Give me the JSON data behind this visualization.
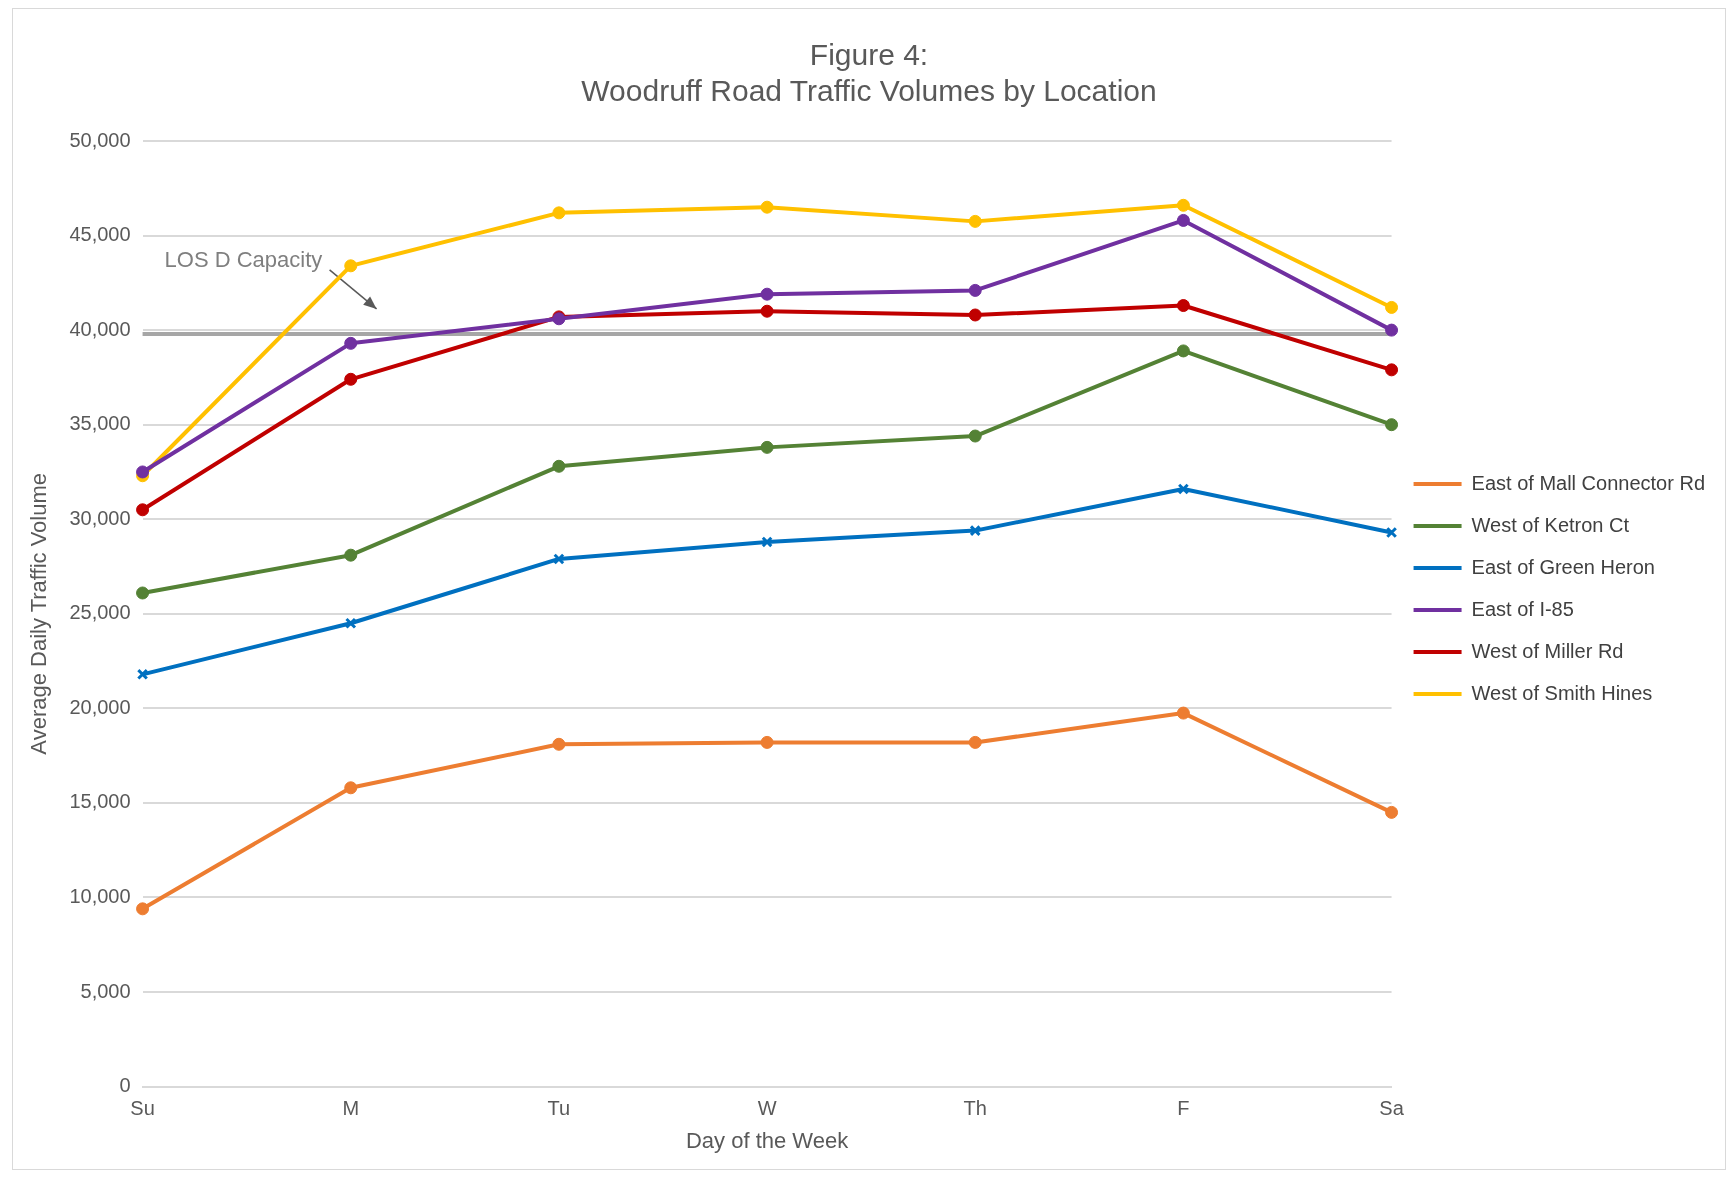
{
  "chart_data": {
    "type": "line",
    "title": "Figure 4:\nWoodruff Road Traffic Volumes by Location",
    "xlabel": "Day of the Week",
    "ylabel": "Average Daily Traffic Volume",
    "categories": [
      "Su",
      "M",
      "Tu",
      "W",
      "Th",
      "F",
      "Sa"
    ],
    "series": [
      {
        "name": "East of Mall Connector Rd",
        "color": "#ed7d31",
        "values": [
          9400,
          15800,
          18100,
          18200,
          18200,
          19750,
          14500
        ]
      },
      {
        "name": "West of Ketron Ct",
        "color": "#548235",
        "values": [
          26100,
          28100,
          32800,
          33800,
          34400,
          38900,
          35000
        ]
      },
      {
        "name": "East of Green Heron",
        "color": "#0070c0",
        "marker": "cross",
        "values": [
          21800,
          24500,
          27900,
          28800,
          29400,
          31600,
          29300
        ]
      },
      {
        "name": "East of I-85",
        "color": "#7030a0",
        "values": [
          32500,
          39300,
          40600,
          41900,
          42100,
          45800,
          40000
        ]
      },
      {
        "name": "West of Miller Rd",
        "color": "#c00000",
        "values": [
          30500,
          37400,
          40700,
          41000,
          40800,
          41300,
          37900
        ]
      },
      {
        "name": "West of Smith Hines",
        "color": "#ffc000",
        "values": [
          32300,
          43400,
          46200,
          46500,
          45750,
          46600,
          41200
        ]
      }
    ],
    "ylim": [
      0,
      50000
    ],
    "yticks": [
      {
        "value": 0,
        "label": "0"
      },
      {
        "value": 5000,
        "label": "5,000"
      },
      {
        "value": 10000,
        "label": "10,000"
      },
      {
        "value": 15000,
        "label": "15,000"
      },
      {
        "value": 20000,
        "label": "20,000"
      },
      {
        "value": 25000,
        "label": "25,000"
      },
      {
        "value": 30000,
        "label": "30,000"
      },
      {
        "value": 35000,
        "label": "35,000"
      },
      {
        "value": 40000,
        "label": "40,000"
      },
      {
        "value": 45000,
        "label": "45,000"
      },
      {
        "value": 50000,
        "label": "50,000"
      }
    ],
    "ref_lines": [
      {
        "axis": "y",
        "value": 39800,
        "label": "LOS D Capacity",
        "color": "#a6a6a6"
      }
    ],
    "grid": "y",
    "legend": "right",
    "marker": "circle",
    "line_style": "solid"
  }
}
